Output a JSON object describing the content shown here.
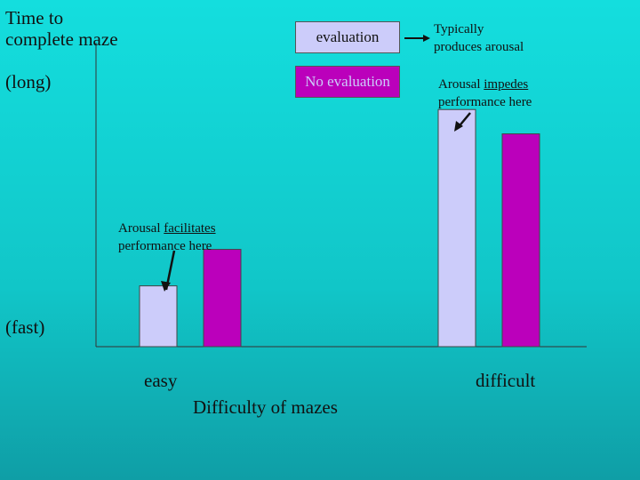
{
  "chart_data": {
    "type": "bar",
    "title": "",
    "ylabel_top": [
      "Time to",
      "complete maze"
    ],
    "ylabel_long": "(long)",
    "ylabel_fast": "(fast)",
    "xlabel": "Difficulty of mazes",
    "categories": [
      "easy",
      "difficult"
    ],
    "ylim": [
      0,
      100
    ],
    "series": [
      {
        "name": "evaluation",
        "color": "#ccccfa",
        "values": [
          20,
          78
        ]
      },
      {
        "name": "No evaluation",
        "color": "#bb00bb",
        "values": [
          32,
          70
        ]
      }
    ],
    "legend_placement": "top-center",
    "annotations": [
      {
        "text_pre": "Arousal ",
        "text_u": "facilitates",
        "line2": "performance here",
        "target": "easy-evaluation"
      },
      {
        "text_pre": "Arousal ",
        "text_u": "impedes",
        "line2": "performance here",
        "target": "difficult-evaluation"
      },
      {
        "line1": "Typically",
        "line2": "produces arousal",
        "target": "legend-evaluation"
      }
    ]
  }
}
